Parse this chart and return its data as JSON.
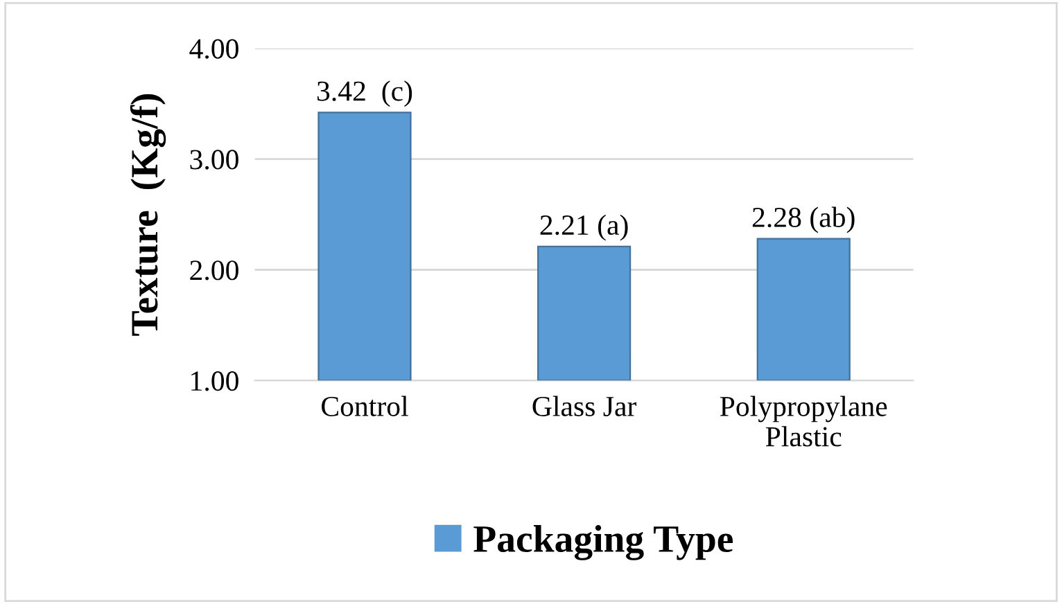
{
  "chart_data": {
    "type": "bar",
    "ylabel": "Texture  (Kg/f)",
    "categories": [
      "Control",
      "Glass Jar",
      "Polypropylane\nPlastic"
    ],
    "series": [
      {
        "name": "Packaging Type",
        "color": "#5b9bd5",
        "values": [
          3.42,
          2.21,
          2.28
        ],
        "value_labels": [
          "3.42  (c)",
          "2.21 (a)",
          "2.28 (ab)"
        ]
      }
    ],
    "ylim": [
      1,
      4
    ],
    "yticks": [
      {
        "value": 1,
        "label": "1.00"
      },
      {
        "value": 2,
        "label": "2.00"
      },
      {
        "value": 3,
        "label": "3.00"
      },
      {
        "value": 4,
        "label": "4.00"
      }
    ],
    "grid": "y",
    "legend": "bottom"
  }
}
